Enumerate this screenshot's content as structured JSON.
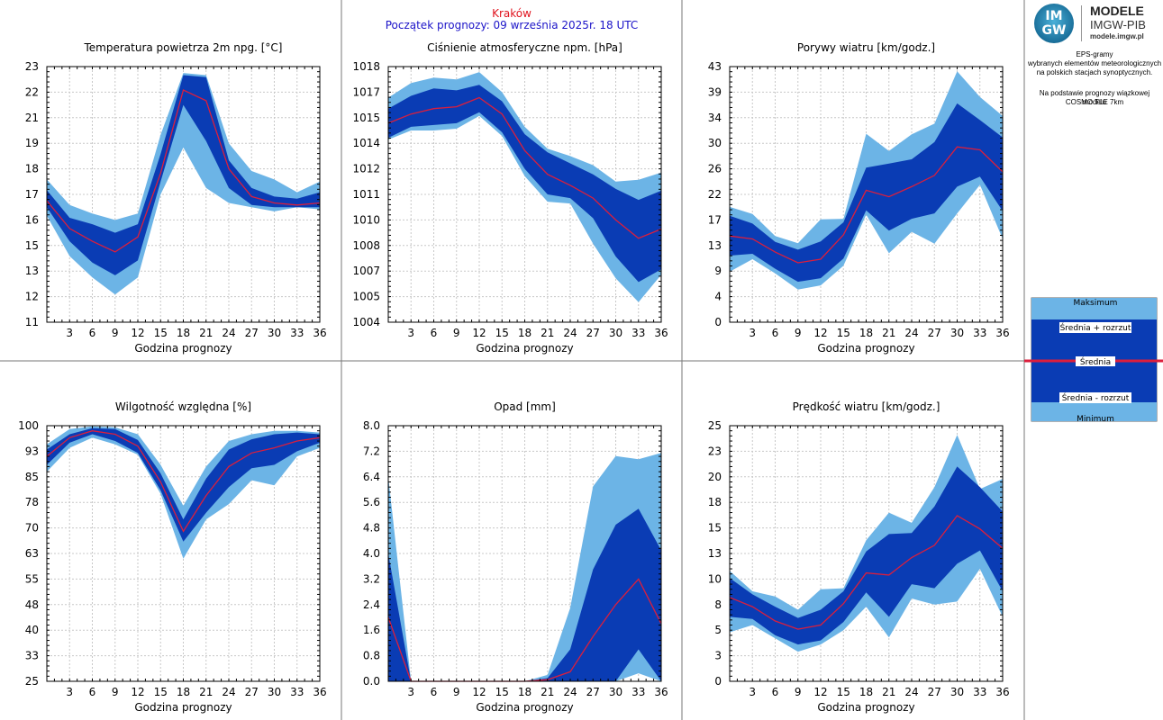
{
  "header": {
    "city": "Kraków",
    "start": "Początek prognozy: 09 września 2025r. 18 UTC",
    "city_color": "#e0141e",
    "start_color": "#1c14c8"
  },
  "logo": {
    "mark_top": "IM",
    "mark_bottom": "GW",
    "title": "MODELE",
    "org": "IMGW-PIB",
    "url": "modele.imgw.pl"
  },
  "description": {
    "line1": "EPS-gramy",
    "line2": "wybranych elementów meteorologicznych",
    "line3": "na polskich stacjach  synoptycznych.",
    "line4": "Na podstawie prognozy wiązkowej modelu",
    "line5": "COSMO TLE 7km"
  },
  "legend": {
    "max": "Maksimum",
    "plus": "Średnia + rozrzut",
    "mean": "Średnia",
    "minus": "Średnia - rozrzut",
    "min": "Minimum"
  },
  "colors": {
    "light": "#6cb4e6",
    "dark": "#0a3cb4",
    "mean": "#dc1e3c",
    "grid": "#c8c8c8"
  },
  "chart_data": [
    {
      "id": "temp",
      "type": "area",
      "title": "Temperatura powietrza 2m npg. [°C]",
      "xlabel": "Godzina prognozy",
      "x": [
        0,
        3,
        6,
        9,
        12,
        15,
        18,
        21,
        24,
        27,
        30,
        33,
        36
      ],
      "xticks": [
        3,
        6,
        9,
        12,
        15,
        18,
        21,
        24,
        27,
        30,
        33,
        36
      ],
      "ylim": [
        11,
        23
      ],
      "yticks": [
        "11",
        "12",
        "13",
        "15",
        "16",
        "17",
        "18",
        "19",
        "21",
        "22",
        "23"
      ],
      "ytick_values": [
        11,
        12.2,
        13.4,
        14.6,
        15.8,
        17,
        18.2,
        19.4,
        20.6,
        21.8,
        23
      ],
      "series": [
        {
          "name": "Minimum",
          "values": [
            16.0,
            14.1,
            13.1,
            12.3,
            13.1,
            17.0,
            19.2,
            17.3,
            16.6,
            16.4,
            16.2,
            16.4,
            16.3
          ]
        },
        {
          "name": "Średnia - rozrzut",
          "values": [
            16.4,
            14.8,
            13.8,
            13.2,
            13.9,
            17.6,
            21.2,
            19.5,
            17.3,
            16.5,
            16.4,
            16.4,
            16.4
          ]
        },
        {
          "name": "Średnia",
          "values": [
            16.7,
            15.4,
            14.8,
            14.3,
            15.0,
            18.0,
            21.9,
            21.4,
            18.2,
            16.9,
            16.6,
            16.5,
            16.6
          ]
        },
        {
          "name": "Średnia + rozrzut",
          "values": [
            17.2,
            15.9,
            15.6,
            15.2,
            15.6,
            18.9,
            22.6,
            22.5,
            18.6,
            17.3,
            16.9,
            16.8,
            17.1
          ]
        },
        {
          "name": "Maksimum",
          "values": [
            17.7,
            16.5,
            16.1,
            15.8,
            16.1,
            19.8,
            22.7,
            22.6,
            19.4,
            18.1,
            17.7,
            17.1,
            17.6
          ]
        }
      ]
    },
    {
      "id": "pressure",
      "type": "area",
      "title": "Ciśnienie atmosferyczne npm. [hPa]",
      "xlabel": "Godzina prognozy",
      "x": [
        0,
        3,
        6,
        9,
        12,
        15,
        18,
        21,
        24,
        27,
        30,
        33,
        36
      ],
      "xticks": [
        3,
        6,
        9,
        12,
        15,
        18,
        21,
        24,
        27,
        30,
        33,
        36
      ],
      "ylim": [
        1004,
        1018
      ],
      "yticks": [
        "1004",
        "1005",
        "1007",
        "1008",
        "1010",
        "1011",
        "1012",
        "1014",
        "1015",
        "1017",
        "1018"
      ],
      "ytick_values": [
        1004,
        1005.4,
        1006.8,
        1008.2,
        1009.6,
        1011,
        1012.4,
        1013.8,
        1015.2,
        1016.6,
        1018
      ],
      "series": [
        {
          "name": "Minimum",
          "values": [
            1014.0,
            1014.5,
            1014.5,
            1014.6,
            1015.3,
            1014.2,
            1012.0,
            1010.6,
            1010.5,
            1008.3,
            1006.4,
            1005.1,
            1006.6
          ]
        },
        {
          "name": "Średnia - rozrzut",
          "values": [
            1014.1,
            1014.7,
            1014.8,
            1014.9,
            1015.5,
            1014.4,
            1012.4,
            1011.0,
            1010.8,
            1009.7,
            1007.6,
            1006.2,
            1006.9
          ]
        },
        {
          "name": "Średnia",
          "values": [
            1014.9,
            1015.4,
            1015.7,
            1015.8,
            1016.3,
            1015.4,
            1013.4,
            1012.1,
            1011.5,
            1010.8,
            1009.6,
            1008.6,
            1009.1
          ]
        },
        {
          "name": "Średnia + rozrzut",
          "values": [
            1015.7,
            1016.4,
            1016.8,
            1016.7,
            1017.0,
            1016.1,
            1014.3,
            1013.3,
            1012.7,
            1012.1,
            1011.3,
            1010.7,
            1011.2
          ]
        },
        {
          "name": "Maksimum",
          "values": [
            1016.3,
            1017.1,
            1017.4,
            1017.3,
            1017.7,
            1016.6,
            1014.7,
            1013.5,
            1013.1,
            1012.6,
            1011.7,
            1011.8,
            1012.2
          ]
        }
      ]
    },
    {
      "id": "gusts",
      "type": "area",
      "title": "Porywy wiatru [km/godz.]",
      "xlabel": "Godzina prognozy",
      "x": [
        0,
        3,
        6,
        9,
        12,
        15,
        18,
        21,
        24,
        27,
        30,
        33,
        36
      ],
      "xticks": [
        3,
        6,
        9,
        12,
        15,
        18,
        21,
        24,
        27,
        30,
        33,
        36
      ],
      "ylim": [
        0,
        43
      ],
      "yticks": [
        "0",
        "4",
        "9",
        "13",
        "17",
        "22",
        "26",
        "30",
        "34",
        "39",
        "43"
      ],
      "ytick_values": [
        0,
        4.3,
        8.6,
        12.9,
        17.2,
        21.5,
        25.8,
        30.1,
        34.4,
        38.7,
        43
      ],
      "series": [
        {
          "name": "Minimum",
          "values": [
            8.5,
            10.6,
            8.2,
            5.5,
            6.2,
            9.5,
            18.1,
            11.6,
            15.2,
            13.2,
            18.3,
            23.1,
            14.0
          ]
        },
        {
          "name": "Średnia - rozrzut",
          "values": [
            11.2,
            11.5,
            9.0,
            6.8,
            7.4,
            10.7,
            18.8,
            15.4,
            17.4,
            18.3,
            22.8,
            24.5,
            18.7
          ]
        },
        {
          "name": "Średnia",
          "values": [
            14.5,
            14.0,
            11.8,
            10.0,
            10.6,
            14.7,
            22.2,
            21.1,
            22.8,
            24.7,
            29.5,
            29.0,
            25.3
          ]
        },
        {
          "name": "Średnia + rozrzut",
          "values": [
            17.9,
            16.6,
            13.5,
            12.2,
            13.6,
            16.8,
            26.0,
            26.7,
            27.4,
            30.3,
            36.8,
            34.0,
            31.1
          ]
        },
        {
          "name": "Maksimum",
          "values": [
            19.4,
            18.2,
            14.5,
            13.3,
            17.3,
            17.4,
            31.7,
            28.8,
            31.6,
            33.4,
            42.2,
            37.9,
            34.7
          ]
        }
      ]
    },
    {
      "id": "humidity",
      "type": "area",
      "title": "Wilgotność względna [%]",
      "xlabel": "Godzina prognozy",
      "x": [
        0,
        3,
        6,
        9,
        12,
        15,
        18,
        21,
        24,
        27,
        30,
        33,
        36
      ],
      "xticks": [
        3,
        6,
        9,
        12,
        15,
        18,
        21,
        24,
        27,
        30,
        33,
        36
      ],
      "ylim": [
        25,
        100
      ],
      "yticks": [
        "25",
        "33",
        "40",
        "48",
        "55",
        "63",
        "70",
        "78",
        "85",
        "93",
        "100"
      ],
      "ytick_values": [
        25,
        32.5,
        40,
        47.5,
        55,
        62.5,
        70,
        77.5,
        85,
        92.5,
        100
      ],
      "series": [
        {
          "name": "Minimum",
          "values": [
            86.5,
            93.5,
            96.5,
            94.5,
            91.5,
            80.0,
            61.0,
            72.5,
            77.0,
            84.0,
            82.5,
            91.0,
            93.5
          ]
        },
        {
          "name": "Średnia - rozrzut",
          "values": [
            88.5,
            95.0,
            97.5,
            95.5,
            92.0,
            81.0,
            66.0,
            74.5,
            82.0,
            87.5,
            88.5,
            92.5,
            95.0
          ]
        },
        {
          "name": "Średnia",
          "values": [
            91.0,
            96.5,
            98.5,
            97.5,
            94.0,
            83.5,
            69.0,
            79.5,
            88.0,
            92.0,
            93.5,
            95.5,
            96.5
          ]
        },
        {
          "name": "Średnia + rozrzut",
          "values": [
            93.0,
            97.5,
            99.3,
            99.0,
            95.8,
            86.0,
            72.5,
            84.5,
            93.0,
            96.0,
            97.5,
            98.0,
            97.5
          ]
        },
        {
          "name": "Maksimum",
          "values": [
            94.5,
            99.0,
            99.8,
            99.5,
            97.5,
            88.5,
            76.5,
            88.0,
            95.5,
            97.5,
            98.5,
            98.5,
            98.0
          ]
        }
      ]
    },
    {
      "id": "precip",
      "type": "area",
      "title": "Opad [mm]",
      "xlabel": "Godzina prognozy",
      "x": [
        0,
        3,
        6,
        9,
        12,
        15,
        18,
        21,
        24,
        27,
        30,
        33,
        36
      ],
      "xticks": [
        3,
        6,
        9,
        12,
        15,
        18,
        21,
        24,
        27,
        30,
        33,
        36
      ],
      "ylim": [
        0,
        8
      ],
      "yticks": [
        "0.0",
        "0.8",
        "1.6",
        "2.4",
        "3.2",
        "4.0",
        "4.8",
        "5.6",
        "6.4",
        "7.2",
        "8.0"
      ],
      "ytick_values": [
        0,
        0.8,
        1.6,
        2.4,
        3.2,
        4.0,
        4.8,
        5.6,
        6.4,
        7.2,
        8.0
      ],
      "series": [
        {
          "name": "Minimum",
          "values": [
            0,
            0,
            0,
            0,
            0,
            0,
            0,
            0,
            0,
            0,
            0,
            0.25,
            0
          ]
        },
        {
          "name": "Średnia - rozrzut",
          "values": [
            0,
            0,
            0,
            0,
            0,
            0,
            0,
            0,
            0,
            0,
            0,
            1.0,
            0
          ]
        },
        {
          "name": "Średnia",
          "values": [
            2.0,
            0,
            0,
            0,
            0,
            0,
            0,
            0.05,
            0.3,
            1.4,
            2.4,
            3.2,
            1.8
          ]
        },
        {
          "name": "Średnia + rozrzut",
          "values": [
            4.0,
            0,
            0,
            0,
            0,
            0,
            0,
            0.1,
            1.0,
            3.5,
            4.9,
            5.4,
            4.1
          ]
        },
        {
          "name": "Maksimum",
          "values": [
            6.4,
            0,
            0,
            0,
            0,
            0,
            0,
            0.2,
            2.3,
            6.1,
            7.05,
            6.95,
            7.15
          ]
        }
      ]
    },
    {
      "id": "wind",
      "type": "area",
      "title": "Prędkość wiatru [km/godz.]",
      "xlabel": "Godzina prognozy",
      "x": [
        0,
        3,
        6,
        9,
        12,
        15,
        18,
        21,
        24,
        27,
        30,
        33,
        36
      ],
      "xticks": [
        3,
        6,
        9,
        12,
        15,
        18,
        21,
        24,
        27,
        30,
        33,
        36
      ],
      "ylim": [
        0,
        25
      ],
      "yticks": [
        "0",
        "3",
        "5",
        "8",
        "10",
        "13",
        "15",
        "18",
        "20",
        "23",
        "25"
      ],
      "ytick_values": [
        0,
        2.5,
        5,
        7.5,
        10,
        12.5,
        15,
        17.5,
        20,
        22.5,
        25
      ],
      "series": [
        {
          "name": "Minimum",
          "values": [
            4.8,
            5.5,
            4.2,
            2.9,
            3.6,
            5.0,
            7.3,
            4.3,
            8.1,
            7.5,
            7.8,
            11.0,
            6.3
          ]
        },
        {
          "name": "Średnia - rozrzut",
          "values": [
            6.3,
            6.1,
            4.5,
            3.6,
            4.0,
            5.8,
            8.7,
            6.3,
            9.5,
            9.1,
            11.5,
            12.8,
            8.8
          ]
        },
        {
          "name": "Średnia",
          "values": [
            8.2,
            7.3,
            5.9,
            5.1,
            5.5,
            7.6,
            10.6,
            10.4,
            12.1,
            13.3,
            16.2,
            14.9,
            13.0
          ]
        },
        {
          "name": "Średnia + rozrzut",
          "values": [
            10.1,
            8.5,
            7.3,
            6.2,
            7.0,
            8.8,
            12.7,
            14.4,
            14.5,
            17.1,
            21.0,
            19.0,
            16.6
          ]
        },
        {
          "name": "Maksimum",
          "values": [
            10.8,
            8.8,
            8.3,
            7.0,
            9.0,
            9.1,
            13.8,
            16.5,
            15.5,
            19.0,
            24.1,
            18.8,
            19.8
          ]
        }
      ]
    }
  ]
}
